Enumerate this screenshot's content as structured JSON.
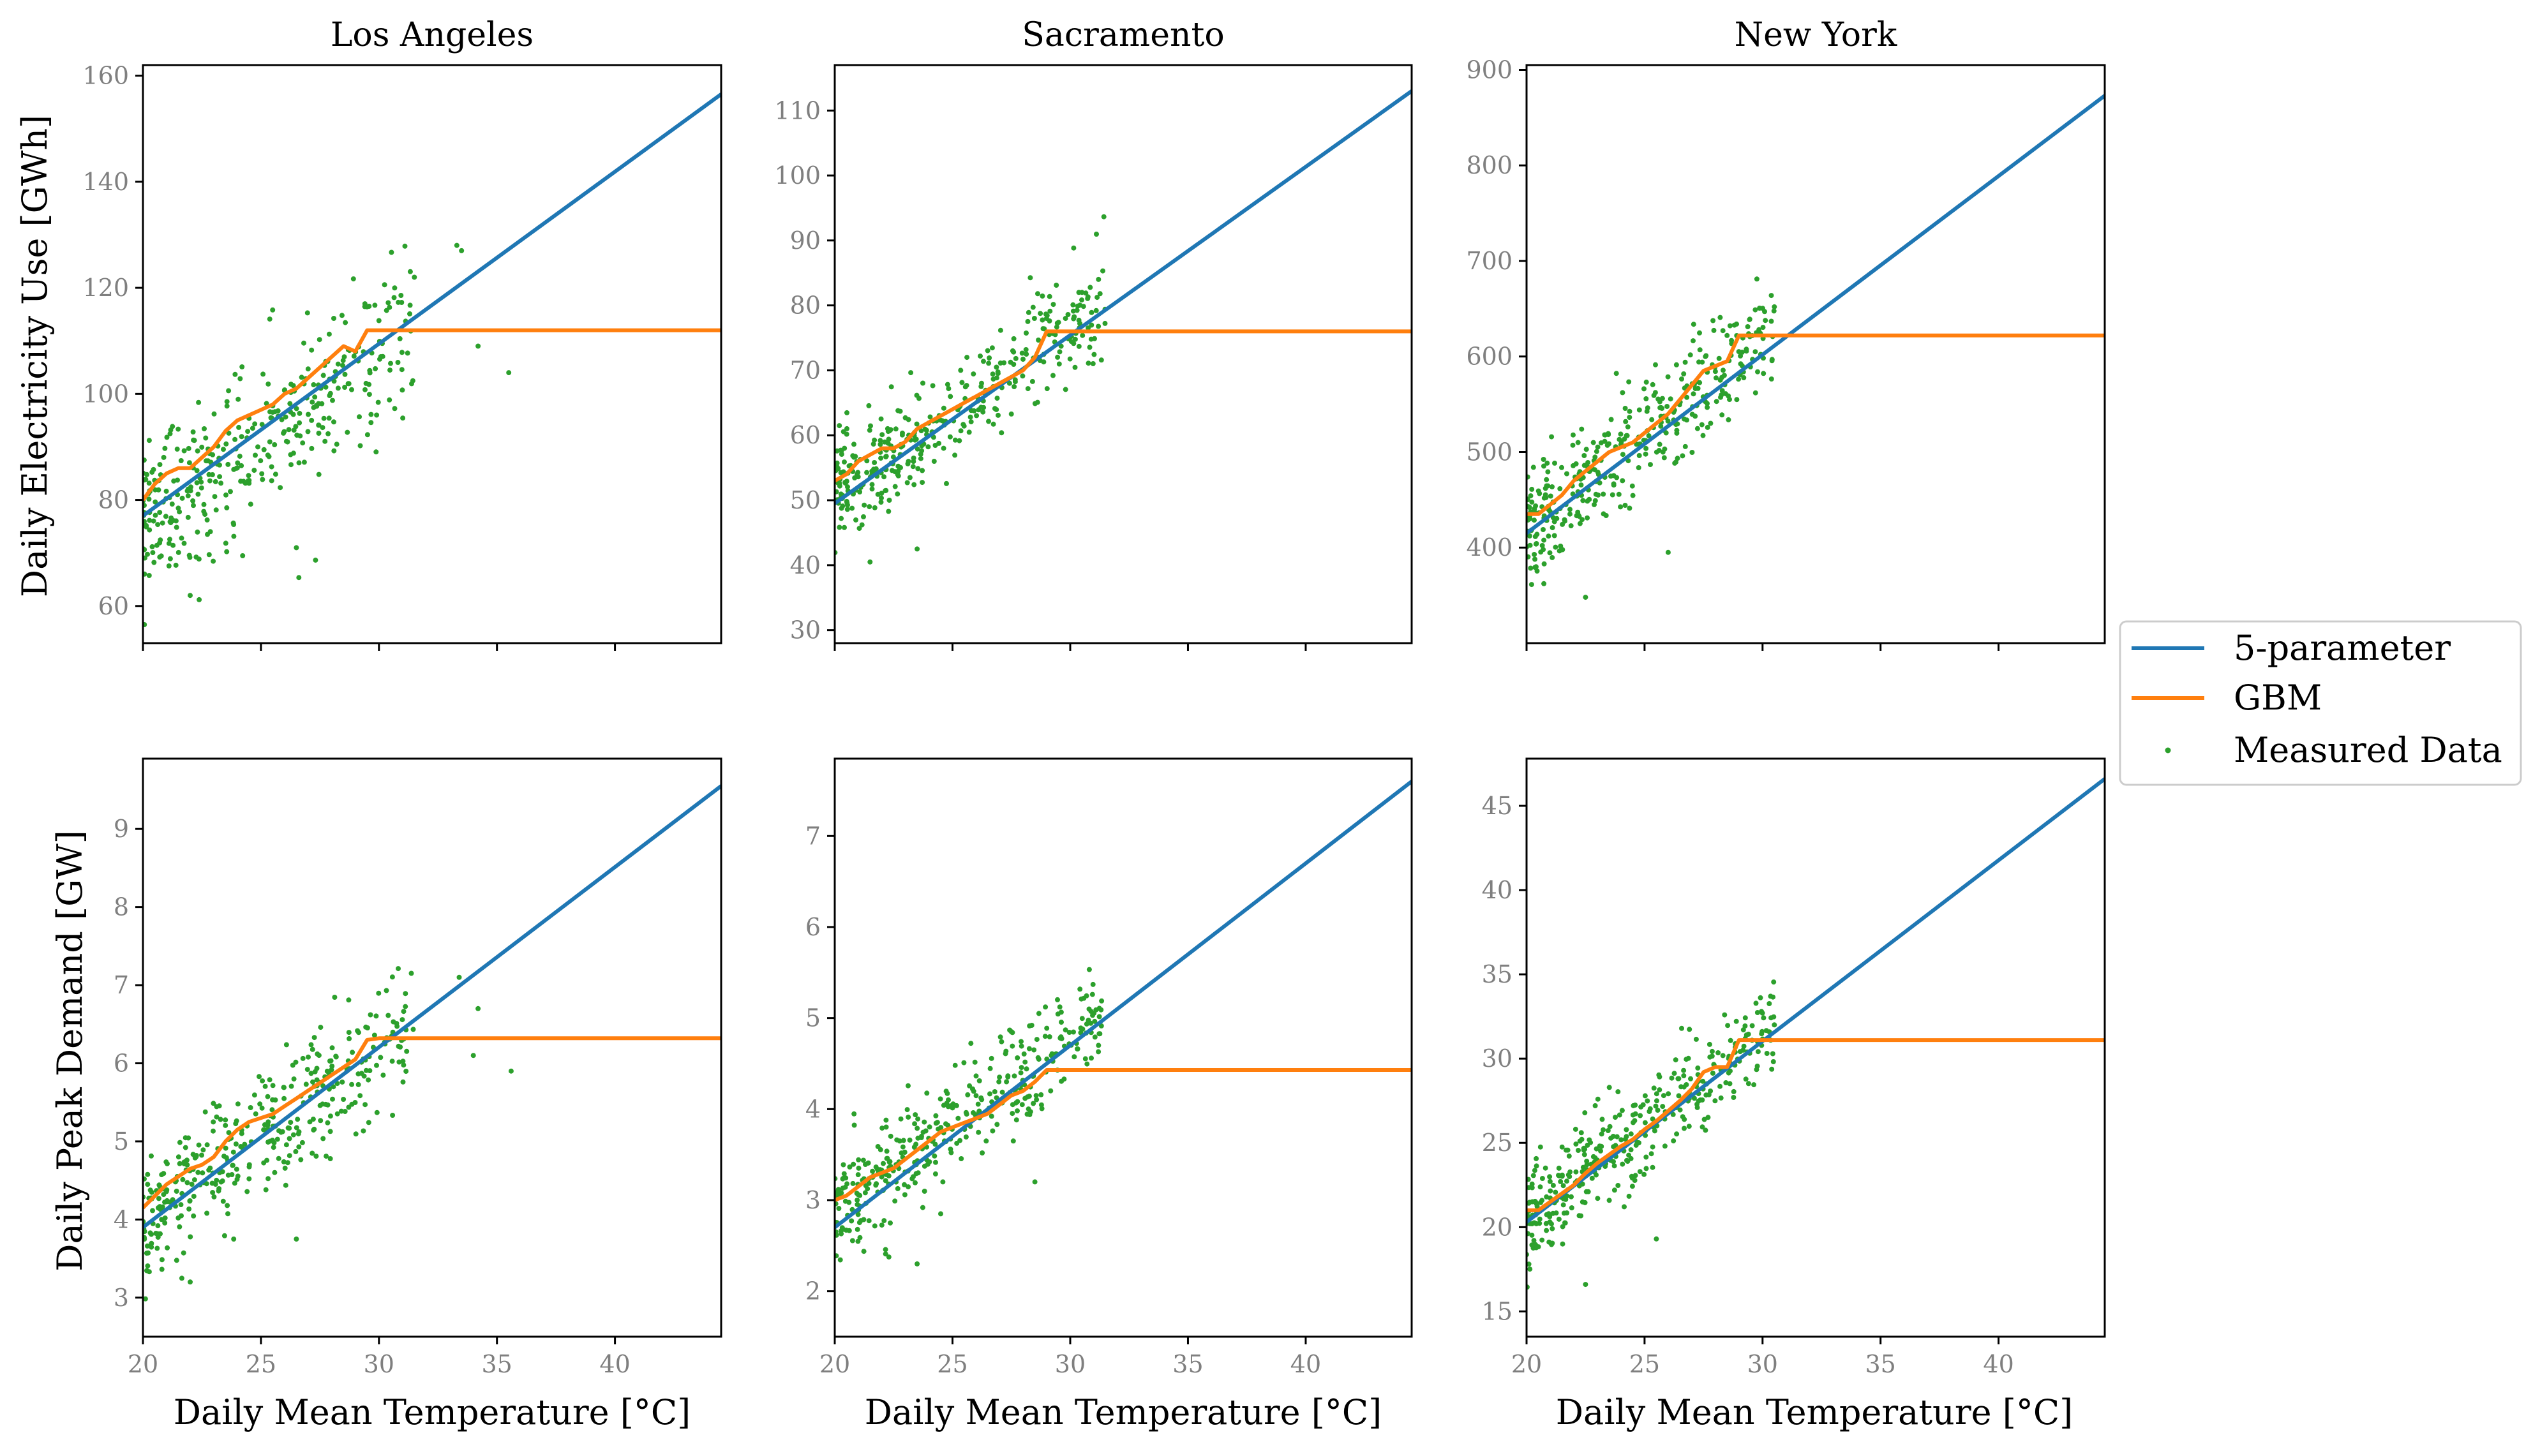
{
  "figure": {
    "ylabel_energy": "Daily Electricity Use [GWh]",
    "ylabel_peak": "Daily Peak Demand [GW]",
    "xlabel": "Daily Mean Temperature [°C]"
  },
  "legend": {
    "items": [
      {
        "label": "5-parameter",
        "color": "#1f77b4",
        "kind": "line"
      },
      {
        "label": "GBM",
        "color": "#ff7f0e",
        "kind": "line"
      },
      {
        "label": "Measured Data",
        "color": "#2ca02c",
        "kind": "dot"
      }
    ],
    "placement": "right"
  },
  "chart_data": [
    {
      "type": "scatter",
      "title": "Los Angeles",
      "xlim": [
        20,
        44.5
      ],
      "ylim": [
        53,
        162
      ],
      "xticks": [
        20,
        25,
        30,
        35,
        40
      ],
      "yticks": [
        60,
        80,
        100,
        120,
        140,
        160
      ],
      "grid": false,
      "series": [
        {
          "name": "5-parameter",
          "x": [
            20,
            44.5
          ],
          "y": [
            77,
            156.5
          ]
        },
        {
          "name": "GBM",
          "x": [
            20,
            20.5,
            21,
            21.5,
            22,
            22.5,
            23,
            23.5,
            24,
            24.5,
            25,
            25.5,
            26,
            26.5,
            27,
            27.5,
            28,
            28.5,
            29,
            29.5,
            44.5
          ],
          "y": [
            80,
            83,
            85,
            86,
            86,
            88,
            90,
            93,
            95,
            96,
            97,
            98,
            100,
            101,
            103,
            105,
            107,
            109,
            108,
            112,
            112
          ]
        },
        {
          "name": "Measured Data",
          "center": {
            "x0": 20,
            "y0": 77,
            "slope": 3.0
          },
          "spread": 7.5,
          "range": [
            20,
            31.5
          ],
          "count": 380,
          "extra": [
            [
              33.3,
              128
            ],
            [
              33.5,
              127
            ],
            [
              34.2,
              109
            ],
            [
              35.5,
              104
            ],
            [
              31.5,
              122
            ],
            [
              26.5,
              71
            ],
            [
              22,
              62
            ]
          ]
        }
      ]
    },
    {
      "type": "scatter",
      "title": "Sacramento",
      "xlim": [
        20,
        44.5
      ],
      "ylim": [
        28,
        117
      ],
      "xticks": [
        20,
        25,
        30,
        35,
        40
      ],
      "yticks": [
        30,
        40,
        50,
        60,
        70,
        80,
        90,
        100,
        110
      ],
      "grid": false,
      "series": [
        {
          "name": "5-parameter",
          "x": [
            20,
            44.5
          ],
          "y": [
            49.5,
            113
          ]
        },
        {
          "name": "GBM",
          "x": [
            20,
            20.5,
            21,
            21.5,
            22,
            22.5,
            23,
            23.5,
            24,
            24.5,
            25,
            25.5,
            26,
            26.5,
            27,
            27.5,
            28,
            28.5,
            29,
            44.5
          ],
          "y": [
            53,
            54,
            56,
            57,
            58,
            58,
            59,
            61,
            62,
            63,
            64,
            65,
            66,
            67,
            68,
            69,
            70,
            72,
            76,
            76
          ]
        },
        {
          "name": "Measured Data",
          "center": {
            "x0": 20,
            "y0": 51,
            "slope": 2.55
          },
          "spread": 4.5,
          "range": [
            20,
            31.5
          ],
          "count": 380,
          "extra": [
            [
              31.2,
              84
            ],
            [
              30.5,
              82
            ],
            [
              23.5,
              42.5
            ],
            [
              21.5,
              40.5
            ]
          ]
        }
      ]
    },
    {
      "type": "scatter",
      "title": "New York",
      "xlim": [
        20,
        44.5
      ],
      "ylim": [
        300,
        905
      ],
      "xticks": [
        20,
        25,
        30,
        35,
        40
      ],
      "yticks": [
        400,
        500,
        600,
        700,
        800,
        900
      ],
      "grid": false,
      "series": [
        {
          "name": "5-parameter",
          "x": [
            20,
            44.5
          ],
          "y": [
            415,
            873
          ]
        },
        {
          "name": "GBM",
          "x": [
            20,
            20.5,
            21,
            21.5,
            22,
            22.5,
            23,
            23.5,
            24,
            24.5,
            25,
            25.5,
            26,
            26.5,
            27,
            27.5,
            28,
            28.5,
            29,
            44.5
          ],
          "y": [
            435,
            435,
            445,
            455,
            470,
            480,
            490,
            500,
            505,
            510,
            520,
            530,
            540,
            555,
            570,
            585,
            590,
            595,
            622,
            622
          ]
        },
        {
          "name": "Measured Data",
          "center": {
            "x0": 20,
            "y0": 420,
            "slope": 19.5
          },
          "spread": 30,
          "range": [
            20,
            30.5
          ],
          "count": 380,
          "extra": [
            [
              22.5,
              348
            ],
            [
              26,
              395
            ],
            [
              30.5,
              652
            ]
          ]
        }
      ]
    },
    {
      "type": "scatter",
      "title": "",
      "xlim": [
        20,
        44.5
      ],
      "ylim": [
        2.5,
        9.9
      ],
      "xticks": [
        20,
        25,
        30,
        35,
        40
      ],
      "yticks": [
        3,
        4,
        5,
        6,
        7,
        8,
        9
      ],
      "grid": false,
      "series": [
        {
          "name": "5-parameter",
          "x": [
            20,
            44.5
          ],
          "y": [
            3.9,
            9.55
          ]
        },
        {
          "name": "GBM",
          "x": [
            20,
            20.5,
            21,
            21.5,
            22,
            22.5,
            23,
            23.5,
            24,
            24.5,
            25,
            25.5,
            26,
            26.5,
            27,
            27.5,
            28,
            28.5,
            29,
            29.5,
            30,
            44.5
          ],
          "y": [
            4.15,
            4.3,
            4.45,
            4.55,
            4.65,
            4.7,
            4.8,
            5.0,
            5.15,
            5.25,
            5.3,
            5.35,
            5.45,
            5.55,
            5.65,
            5.75,
            5.85,
            5.95,
            6.05,
            6.3,
            6.32,
            6.32
          ]
        },
        {
          "name": "Measured Data",
          "center": {
            "x0": 20,
            "y0": 4.0,
            "slope": 0.22
          },
          "spread": 0.4,
          "range": [
            20,
            31.5
          ],
          "count": 380,
          "extra": [
            [
              33.4,
              7.1
            ],
            [
              34.2,
              6.7
            ],
            [
              35.6,
              5.9
            ],
            [
              34,
              6.1
            ],
            [
              22,
              3.2
            ],
            [
              26.5,
              3.75
            ]
          ]
        }
      ]
    },
    {
      "type": "scatter",
      "title": "",
      "xlim": [
        20,
        44.5
      ],
      "ylim": [
        1.5,
        7.85
      ],
      "xticks": [
        20,
        25,
        30,
        35,
        40
      ],
      "yticks": [
        2,
        3,
        4,
        5,
        6,
        7
      ],
      "grid": false,
      "series": [
        {
          "name": "5-parameter",
          "x": [
            20,
            44.5
          ],
          "y": [
            2.7,
            7.6
          ]
        },
        {
          "name": "GBM",
          "x": [
            20,
            20.5,
            21,
            21.5,
            22,
            22.5,
            23,
            23.5,
            24,
            24.5,
            25,
            25.5,
            26,
            26.5,
            27,
            27.5,
            28,
            28.5,
            29,
            44.5
          ],
          "y": [
            3.0,
            3.05,
            3.15,
            3.25,
            3.3,
            3.35,
            3.45,
            3.55,
            3.65,
            3.75,
            3.8,
            3.85,
            3.9,
            3.95,
            4.05,
            4.15,
            4.2,
            4.3,
            4.43,
            4.43
          ]
        },
        {
          "name": "Measured Data",
          "center": {
            "x0": 20,
            "y0": 2.85,
            "slope": 0.19
          },
          "spread": 0.3,
          "range": [
            20,
            31.5
          ],
          "count": 380,
          "extra": [
            [
              27.5,
              4.85
            ],
            [
              31.2,
              4.7
            ],
            [
              28.5,
              3.2
            ],
            [
              24.5,
              2.85
            ],
            [
              23.5,
              2.3
            ]
          ]
        }
      ]
    },
    {
      "type": "scatter",
      "title": "",
      "xlim": [
        20,
        44.5
      ],
      "ylim": [
        13.5,
        47.8
      ],
      "xticks": [
        20,
        25,
        30,
        35,
        40
      ],
      "yticks": [
        15,
        20,
        25,
        30,
        35,
        40,
        45
      ],
      "grid": false,
      "series": [
        {
          "name": "5-parameter",
          "x": [
            20,
            44.5
          ],
          "y": [
            20.3,
            46.6
          ]
        },
        {
          "name": "GBM",
          "x": [
            20,
            20.5,
            21,
            21.5,
            22,
            22.5,
            23,
            23.5,
            24,
            24.5,
            25,
            25.5,
            26,
            26.5,
            27,
            27.5,
            28,
            28.5,
            29,
            44.5
          ],
          "y": [
            21,
            21,
            21.5,
            22,
            22.5,
            23.2,
            23.8,
            24.3,
            24.8,
            25.2,
            25.8,
            26.3,
            26.9,
            27.5,
            28.2,
            29.2,
            29.5,
            29.5,
            31.1,
            31.1
          ]
        },
        {
          "name": "Measured Data",
          "center": {
            "x0": 20,
            "y0": 20.6,
            "slope": 1.07
          },
          "spread": 1.5,
          "range": [
            20,
            30.5
          ],
          "count": 380,
          "extra": [
            [
              22.5,
              16.6
            ],
            [
              25.5,
              19.3
            ],
            [
              30.5,
              32
            ]
          ]
        }
      ]
    }
  ]
}
